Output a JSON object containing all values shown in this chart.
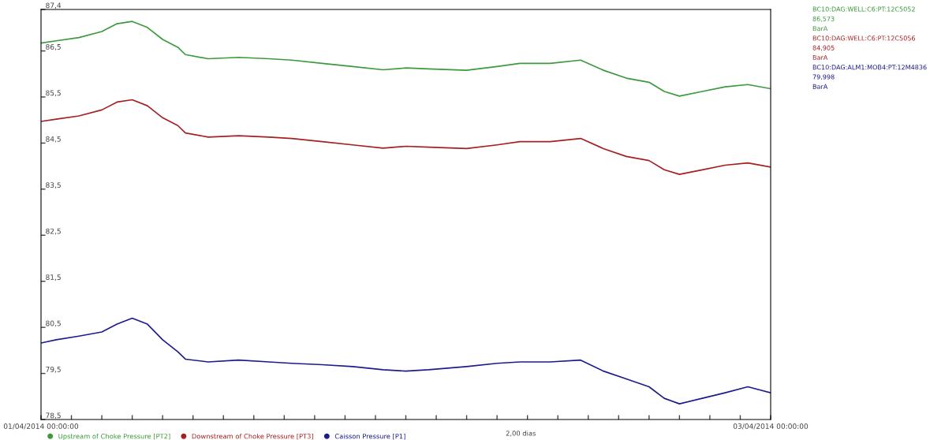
{
  "chart_data": {
    "type": "line",
    "x": [
      "2014-04-01T00:00",
      "2014-04-01T01:00",
      "2014-04-01T02:30",
      "2014-04-01T04:00",
      "2014-04-01T05:00",
      "2014-04-01T06:00",
      "2014-04-01T07:00",
      "2014-04-01T08:00",
      "2014-04-01T09:00",
      "2014-04-01T09:30",
      "2014-04-01T11:00",
      "2014-04-01T13:00",
      "2014-04-01T15:00",
      "2014-04-01T16:30",
      "2014-04-01T18:30",
      "2014-04-01T20:30",
      "2014-04-01T22:30",
      "2014-04-02T00:00",
      "2014-04-02T01:30",
      "2014-04-02T04:00",
      "2014-04-02T06:00",
      "2014-04-02T07:30",
      "2014-04-02T09:30",
      "2014-04-02T11:30",
      "2014-04-02T13:00",
      "2014-04-02T14:30",
      "2014-04-02T16:00",
      "2014-04-02T17:00",
      "2014-04-02T18:00",
      "2014-04-02T19:30",
      "2014-04-02T21:00",
      "2014-04-02T22:30",
      "2014-04-03T00:00"
    ],
    "xlim": [
      "2014-04-01T00:00",
      "2014-04-03T00:00"
    ],
    "xticks": [
      {
        "value": "2014-04-01T00:00",
        "label": "01/04/2014 00:00:00"
      },
      {
        "value": "2014-04-01T02:00",
        "label": null
      },
      {
        "value": "2014-04-01T04:00",
        "label": null
      },
      {
        "value": "2014-04-01T06:00",
        "label": null
      },
      {
        "value": "2014-04-01T08:00",
        "label": null
      },
      {
        "value": "2014-04-01T10:00",
        "label": null
      },
      {
        "value": "2014-04-01T12:00",
        "label": null
      },
      {
        "value": "2014-04-01T14:00",
        "label": null
      },
      {
        "value": "2014-04-01T16:00",
        "label": null
      },
      {
        "value": "2014-04-01T18:00",
        "label": null
      },
      {
        "value": "2014-04-01T20:00",
        "label": null
      },
      {
        "value": "2014-04-01T22:00",
        "label": null
      },
      {
        "value": "2014-04-02T00:00",
        "label": null
      },
      {
        "value": "2014-04-02T02:00",
        "label": null
      },
      {
        "value": "2014-04-02T04:00",
        "label": null
      },
      {
        "value": "2014-04-02T06:00",
        "label": null
      },
      {
        "value": "2014-04-02T08:00",
        "label": null
      },
      {
        "value": "2014-04-02T10:00",
        "label": null
      },
      {
        "value": "2014-04-02T12:00",
        "label": null
      },
      {
        "value": "2014-04-02T14:00",
        "label": null
      },
      {
        "value": "2014-04-02T16:00",
        "label": null
      },
      {
        "value": "2014-04-02T18:00",
        "label": null
      },
      {
        "value": "2014-04-02T20:00",
        "label": null
      },
      {
        "value": "2014-04-02T22:00",
        "label": null
      },
      {
        "value": "2014-04-03T00:00",
        "label": "03/04/2014 00:00:00"
      }
    ],
    "ylim": [
      78.5,
      87.4
    ],
    "yticks": [
      {
        "value": 78.5,
        "label": "78,5"
      },
      {
        "value": 79.5,
        "label": "79,5"
      },
      {
        "value": 80.5,
        "label": "80,5"
      },
      {
        "value": 81.5,
        "label": "81,5"
      },
      {
        "value": 82.5,
        "label": "82,5"
      },
      {
        "value": 83.5,
        "label": "83,5"
      },
      {
        "value": 84.5,
        "label": "84,5"
      },
      {
        "value": 85.5,
        "label": "85,5"
      },
      {
        "value": 86.5,
        "label": "86,5"
      },
      {
        "value": 87.4,
        "label": "87,4"
      }
    ],
    "grid": false,
    "legend": "bottom",
    "marker": "none",
    "line_style": "solid",
    "series": [
      {
        "name": "Upstream of Choke Pressure [PT2]",
        "color": "#3c9a3c",
        "values": [
          86.67,
          86.72,
          86.79,
          86.92,
          87.09,
          87.14,
          87.01,
          86.75,
          86.58,
          86.42,
          86.33,
          86.36,
          86.33,
          86.3,
          86.23,
          86.16,
          86.09,
          86.13,
          86.11,
          86.08,
          86.16,
          86.23,
          86.23,
          86.3,
          86.08,
          85.91,
          85.82,
          85.62,
          85.52,
          85.62,
          85.72,
          85.77,
          85.68
        ]
      },
      {
        "name": "Downstream of Choke Pressure [PT3]",
        "color": "#a52020",
        "values": [
          84.97,
          85.02,
          85.09,
          85.22,
          85.39,
          85.44,
          85.31,
          85.05,
          84.88,
          84.72,
          84.63,
          84.66,
          84.63,
          84.6,
          84.53,
          84.46,
          84.39,
          84.43,
          84.41,
          84.38,
          84.46,
          84.53,
          84.53,
          84.6,
          84.38,
          84.21,
          84.12,
          83.92,
          83.82,
          83.92,
          84.02,
          84.07,
          83.98
        ]
      },
      {
        "name": "Caisson Pressure [P1]",
        "color": "#1c1c8e",
        "values": [
          80.16,
          80.23,
          80.31,
          80.4,
          80.57,
          80.7,
          80.57,
          80.23,
          79.97,
          79.81,
          79.75,
          79.79,
          79.75,
          79.72,
          79.69,
          79.65,
          79.58,
          79.55,
          79.58,
          79.65,
          79.72,
          79.75,
          79.75,
          79.79,
          79.55,
          79.38,
          79.21,
          78.96,
          78.84,
          78.96,
          79.08,
          79.21,
          79.08
        ]
      }
    ],
    "annotations": [
      "BC10:DAG:WELL:C6:PT:12C5052",
      "86,573",
      "BarA",
      "BC10:DAG:WELL:C6:PT:12C5056",
      "84,905",
      "BarA",
      "BC10:DAG:ALM1:MOB4:PT:12M4836",
      "79,998",
      "BarA",
      "2,00 dias"
    ]
  }
}
